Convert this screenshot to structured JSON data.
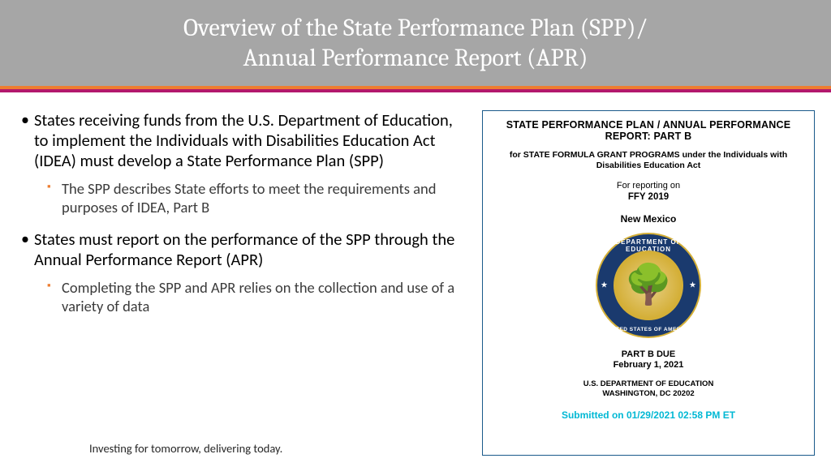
{
  "header": {
    "title_line1": "Overview of the State Performance Plan (SPP)/",
    "title_line2": "Annual Performance Report (APR)"
  },
  "stripe": {
    "top_color": "#ed7d31",
    "bottom_color": "#b3186d"
  },
  "bullets": [
    {
      "text": "States receiving funds from the U.S. Department of Education, to implement the Individuals with Disabilities Education Act (IDEA) must develop a State Performance Plan (SPP)",
      "sub": [
        {
          "text": "The SPP describes State efforts to meet the requirements and purposes of IDEA, Part B"
        }
      ]
    },
    {
      "text": "States must report on the performance of the SPP through the Annual Performance Report (APR)",
      "sub": [
        {
          "text": "Completing the SPP and APR relies on the collection and use of a variety of data"
        }
      ]
    }
  ],
  "tagline": "Investing for tomorrow, delivering today.",
  "document": {
    "title": "STATE PERFORMANCE PLAN / ANNUAL PERFORMANCE REPORT: PART B",
    "subtitle": "for STATE FORMULA GRANT PROGRAMS under the Individuals with Disabilities Education Act",
    "reporting_label": "For reporting on",
    "ffy": "FFY 2019",
    "state": "New Mexico",
    "seal": {
      "top_text": "DEPARTMENT OF EDUCATION",
      "bottom_text": "UNITED STATES OF AMERICA",
      "tree_glyph": "🌳",
      "ring_color": "#1a3a6e",
      "gold_color": "#d4af37"
    },
    "part_b_label": "PART B DUE",
    "due_date": "February 1, 2021",
    "dept": "U.S. DEPARTMENT OF EDUCATION",
    "addr": "WASHINGTON, DC 20202",
    "submitted": "Submitted on 01/29/2021 02:58 PM ET",
    "submitted_color": "#00b8d4",
    "border_color": "#1a5a8a"
  }
}
